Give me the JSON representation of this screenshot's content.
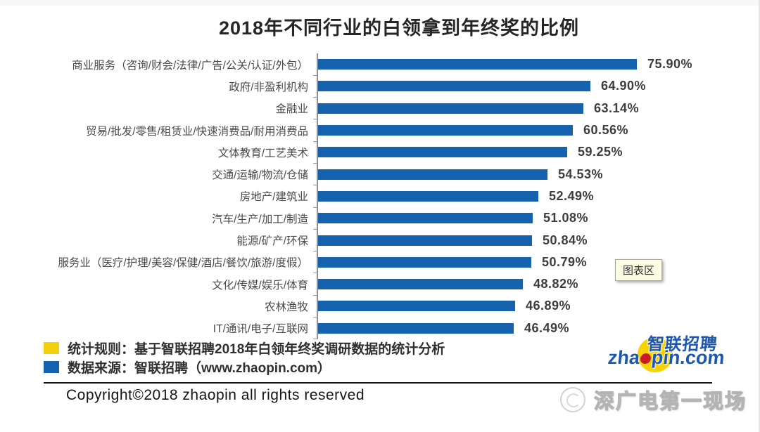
{
  "header": {
    "title": "2018年不同行业的白领拿到年终奖的比例"
  },
  "chart_data": {
    "type": "bar",
    "orientation": "horizontal",
    "title": "2018年不同行业的白领拿到年终奖的比例",
    "categories": [
      "商业服务（咨询/财会/法律/广告/公关/认证/外包）",
      "政府/非盈利机构",
      "金融业",
      "贸易/批发/零售/租赁业/快速消费品/耐用消费品",
      "文体教育/工艺美术",
      "交通/运输/物流/仓储",
      "房地产/建筑业",
      "汽车/生产/加工/制造",
      "能源/矿产/环保",
      "服务业（医疗/护理/美容/保健/酒店/餐饮/旅游/度假）",
      "文化/传媒/娱乐/体育",
      "农林渔牧",
      "IT/通讯/电子/互联网"
    ],
    "values": [
      75.9,
      64.9,
      63.14,
      60.56,
      59.25,
      54.53,
      52.49,
      51.08,
      50.84,
      50.79,
      48.82,
      46.89,
      46.49
    ],
    "value_labels": [
      "75.90%",
      "64.90%",
      "63.14%",
      "60.56%",
      "59.25%",
      "54.53%",
      "52.49%",
      "51.08%",
      "50.84%",
      "50.79%",
      "48.82%",
      "46.89%",
      "46.49%"
    ],
    "bar_color": "#1562ae",
    "axis_color": "#909090",
    "xlim": [
      0,
      80
    ],
    "grid": false,
    "value_label_position": "outside-end",
    "legend_position": "bottom-left"
  },
  "tooltip": {
    "label": "图表区"
  },
  "legend": {
    "items": [
      {
        "swatch_color": "#f3cf0e",
        "label": "统计规则：基于智联招聘2018年白领年终奖调研数据的统计分析"
      },
      {
        "swatch_color": "#1562ae",
        "label": "数据来源：智联招聘（www.zhaopin.com）"
      }
    ]
  },
  "logo": {
    "name_cn": "智联招聘",
    "domain_left": "zha",
    "domain_right": "pin.com",
    "blue": "#1d57b0",
    "yellow": "#f7d303",
    "red": "#cc1a22"
  },
  "footer": {
    "copyright": "Copyright©2018 zhaopin all rights reserved",
    "watermark": "深广电第一现场"
  }
}
